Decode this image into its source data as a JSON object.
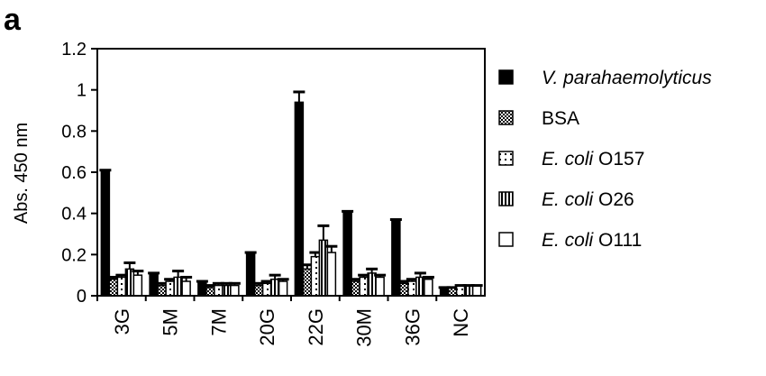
{
  "panel_label": "a",
  "chart_data": {
    "type": "bar",
    "title": "",
    "xlabel": "",
    "ylabel": "Abs. 450 nm",
    "ylim": [
      0,
      1.2
    ],
    "yticks": [
      "0",
      "0.2",
      "0.4",
      "0.6",
      "0.8",
      "1",
      "1.2"
    ],
    "grid": false,
    "legend_position": "right",
    "categories": [
      "3G",
      "5M",
      "7M",
      "20G",
      "22G",
      "30M",
      "36G",
      "NC"
    ],
    "series": [
      {
        "name": "V. parahaemolyticus",
        "name_italic": "V. parahaemolyticus",
        "name_plain": "",
        "pattern": "solid",
        "values": [
          0.61,
          0.11,
          0.07,
          0.21,
          0.94,
          0.41,
          0.37,
          0.04
        ],
        "errors": [
          0.0,
          0.0,
          0.0,
          0.0,
          0.05,
          0.0,
          0.0,
          0.0
        ]
      },
      {
        "name": "BSA",
        "name_italic": "",
        "name_plain": "BSA",
        "pattern": "checker",
        "values": [
          0.08,
          0.05,
          0.04,
          0.05,
          0.13,
          0.07,
          0.06,
          0.04
        ],
        "errors": [
          0.01,
          0.01,
          0.01,
          0.01,
          0.02,
          0.01,
          0.01,
          0.0
        ]
      },
      {
        "name": "E. coli O157",
        "name_italic": "E. coli",
        "name_plain": " O157",
        "pattern": "dot",
        "values": [
          0.09,
          0.07,
          0.05,
          0.06,
          0.19,
          0.09,
          0.07,
          0.05
        ],
        "errors": [
          0.01,
          0.01,
          0.01,
          0.01,
          0.02,
          0.01,
          0.01,
          0.0
        ]
      },
      {
        "name": "E. coli O26",
        "name_italic": "E. coli",
        "name_plain": " O26",
        "pattern": "vstripe",
        "values": [
          0.13,
          0.09,
          0.05,
          0.08,
          0.27,
          0.11,
          0.09,
          0.05
        ],
        "errors": [
          0.03,
          0.03,
          0.01,
          0.02,
          0.07,
          0.02,
          0.02,
          0.0
        ]
      },
      {
        "name": "E. coli O111",
        "name_italic": "E. coli",
        "name_plain": " O111",
        "pattern": "open",
        "values": [
          0.1,
          0.07,
          0.05,
          0.07,
          0.21,
          0.09,
          0.08,
          0.05
        ],
        "errors": [
          0.02,
          0.02,
          0.01,
          0.01,
          0.03,
          0.01,
          0.01,
          0.0
        ]
      }
    ]
  }
}
